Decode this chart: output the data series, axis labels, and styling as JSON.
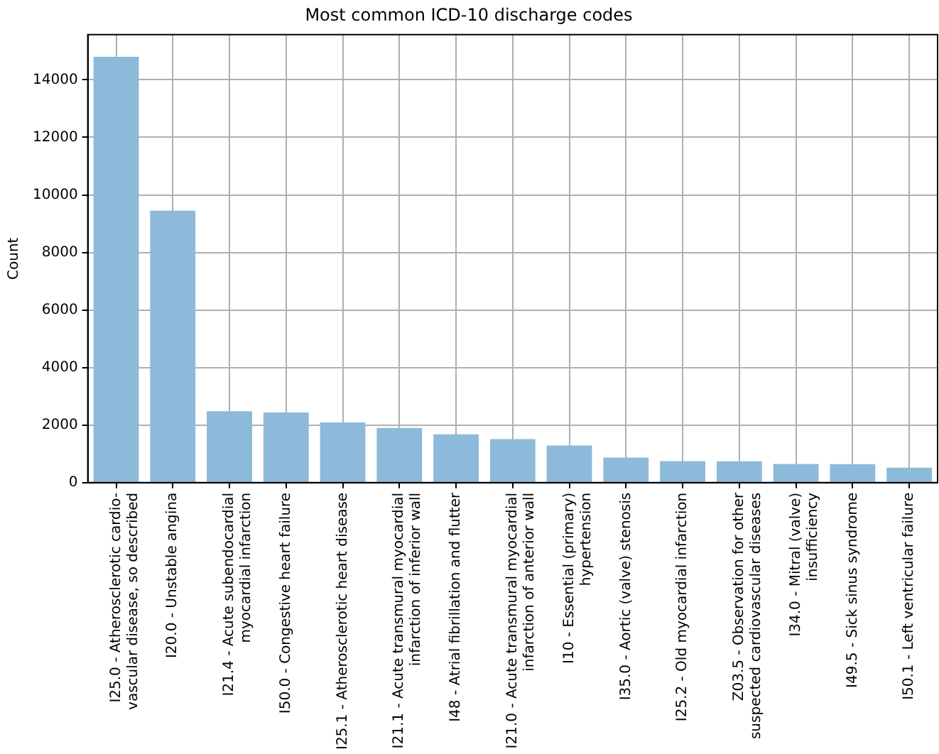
{
  "chart_data": {
    "type": "bar",
    "title": "Most common ICD-10 discharge codes",
    "ylabel": "Count",
    "categories": [
      "I25.0 - Atherosclerotic cardio-\nvascular disease, so described",
      "I20.0 - Unstable angina",
      "I21.4 - Acute subendocardial\nmyocardial infarction",
      "I50.0 - Congestive heart failure",
      "I25.1 - Atherosclerotic heart disease",
      "I21.1 - Acute transmural myocardial\ninfarction of inferior wall",
      "I48 - Atrial fibrillation and flutter",
      "I21.0 - Acute transmural myocardial\ninfarction of anterior wall",
      "I10 - Essential (primary)\nhypertension",
      "I35.0 - Aortic (valve) stenosis",
      "I25.2 - Old myocardial infarction",
      "Z03.5 - Observation for other\nsuspected cardiovascular diseases",
      "I34.0 - Mitral (valve)\ninsufficiency",
      "I49.5 - Sick sinus syndrome",
      "I50.1 - Left ventricular failure"
    ],
    "values": [
      14800,
      9450,
      2480,
      2440,
      2090,
      1900,
      1680,
      1510,
      1290,
      870,
      750,
      740,
      650,
      640,
      520
    ],
    "color": "#8db9da",
    "ylim": [
      0,
      15570
    ],
    "yticks": [
      0,
      2000,
      4000,
      6000,
      8000,
      10000,
      12000,
      14000
    ],
    "grid": true
  }
}
